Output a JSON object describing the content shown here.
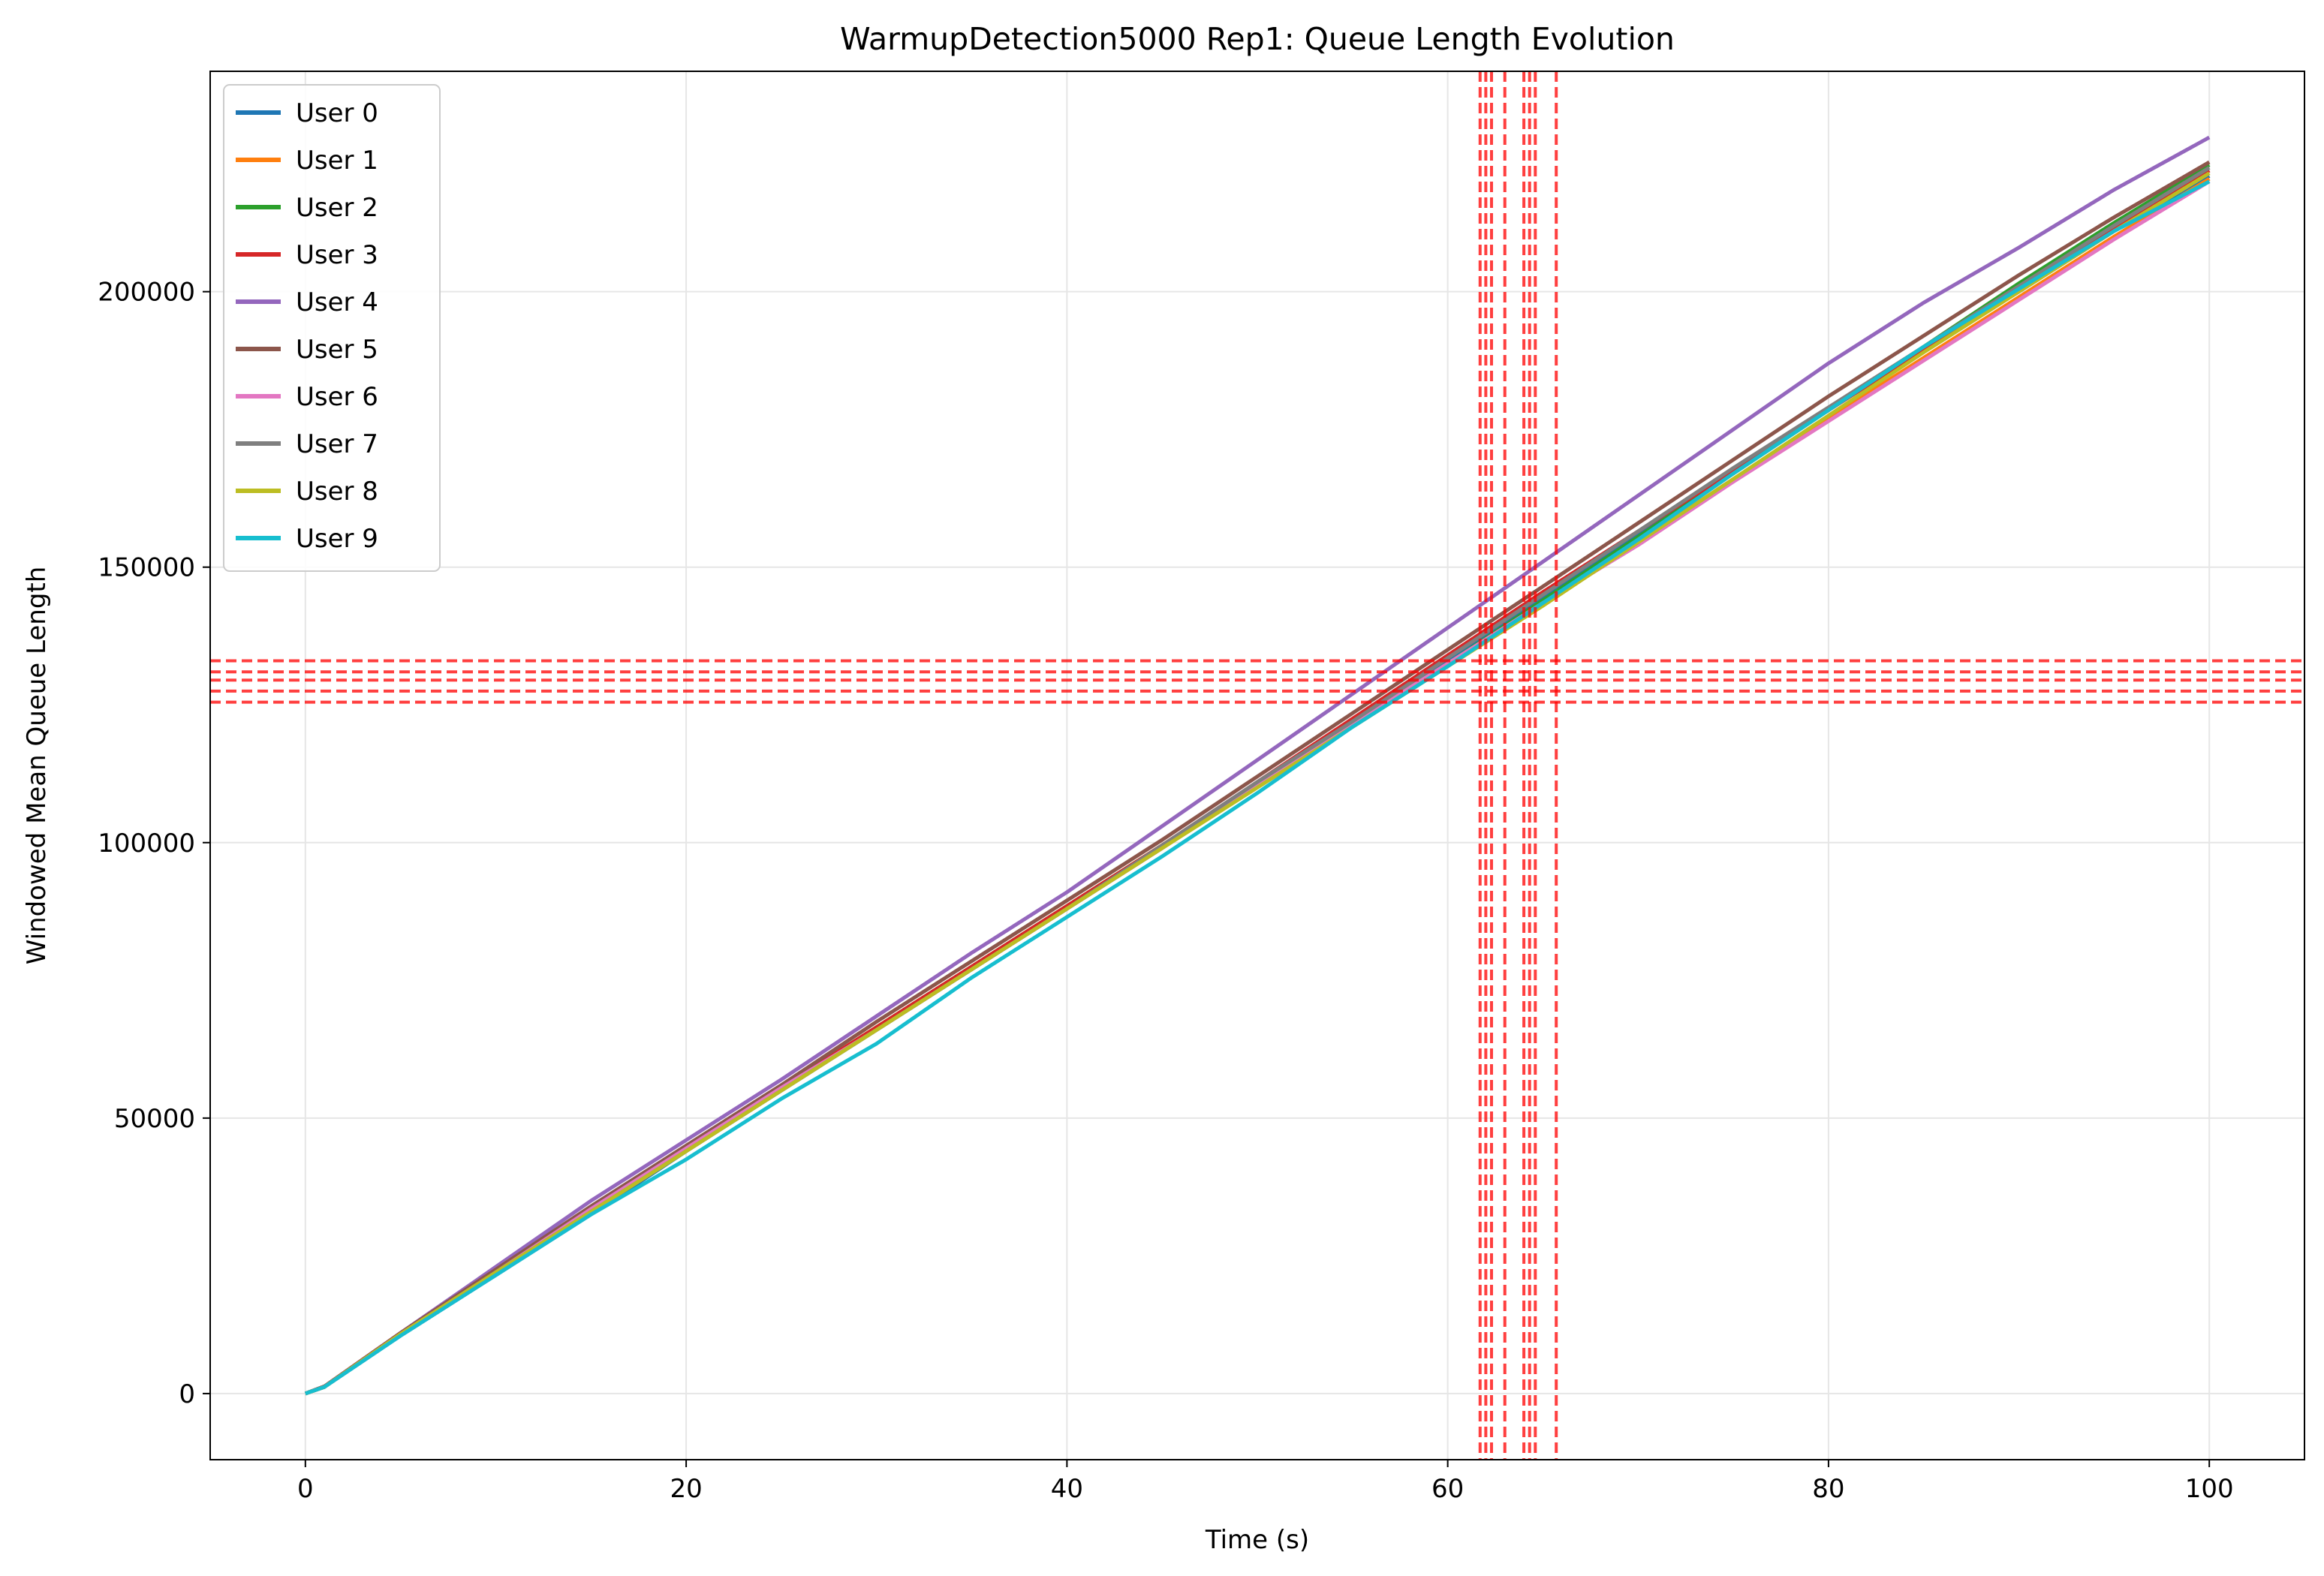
{
  "chart_data": {
    "type": "line",
    "title": "WarmupDetection5000 Rep1: Queue Length Evolution",
    "xlabel": "Time (s)",
    "ylabel": "Windowed Mean Queue Length",
    "xlim": [
      -5,
      105
    ],
    "ylim": [
      -12000,
      240000
    ],
    "xticks": [
      0,
      20,
      40,
      60,
      80,
      100
    ],
    "yticks": [
      0,
      50000,
      100000,
      150000,
      200000
    ],
    "xtick_labels": [
      "0",
      "20",
      "40",
      "60",
      "80",
      "100"
    ],
    "ytick_labels": [
      "0",
      "50000",
      "100000",
      "150000",
      "200000"
    ],
    "grid": true,
    "legend_position": "upper-left",
    "x": [
      0,
      1,
      5,
      10,
      15,
      20,
      25,
      30,
      35,
      40,
      45,
      50,
      55,
      60,
      65,
      70,
      75,
      80,
      85,
      90,
      95,
      100
    ],
    "series": [
      {
        "name": "User 0",
        "color": "#1f77b4",
        "values": [
          0,
          1200,
          10500,
          21500,
          32500,
          44000,
          55000,
          66000,
          77000,
          88000,
          99000,
          110500,
          121500,
          133000,
          144500,
          156000,
          167500,
          178500,
          189500,
          200000,
          211000,
          221000
        ]
      },
      {
        "name": "User 1",
        "color": "#ff7f0e",
        "values": [
          0,
          1200,
          10800,
          22000,
          33000,
          44500,
          55500,
          66500,
          77500,
          88500,
          99500,
          110500,
          121500,
          132500,
          143500,
          154500,
          166000,
          177000,
          188000,
          199000,
          210000,
          220500
        ]
      },
      {
        "name": "User 2",
        "color": "#2ca02c",
        "values": [
          0,
          1300,
          10800,
          22000,
          33000,
          44000,
          55500,
          66500,
          77500,
          88500,
          99500,
          110500,
          121500,
          132500,
          144000,
          155500,
          167000,
          178500,
          190000,
          201500,
          212500,
          223000
        ]
      },
      {
        "name": "User 3",
        "color": "#d62728",
        "values": [
          0,
          1300,
          11000,
          22500,
          33500,
          44500,
          55500,
          66500,
          77500,
          88500,
          99500,
          111000,
          122500,
          134000,
          145500,
          156500,
          167500,
          178500,
          189500,
          200500,
          211500,
          222000
        ]
      },
      {
        "name": "User 4",
        "color": "#9467bd",
        "values": [
          0,
          1300,
          11000,
          23000,
          35000,
          46000,
          57000,
          68500,
          80000,
          91000,
          103000,
          115000,
          127000,
          139000,
          151000,
          163000,
          175000,
          187000,
          198000,
          208000,
          218500,
          228000
        ]
      },
      {
        "name": "User 5",
        "color": "#8c564b",
        "values": [
          0,
          1300,
          11000,
          22500,
          34000,
          45000,
          56000,
          67500,
          78500,
          89500,
          100500,
          112000,
          123500,
          135000,
          146500,
          158000,
          169500,
          181000,
          192000,
          203000,
          213500,
          223500
        ]
      },
      {
        "name": "User 6",
        "color": "#e377c2",
        "values": [
          0,
          1200,
          10800,
          22000,
          33500,
          44500,
          55500,
          66000,
          77000,
          88000,
          99000,
          110500,
          121500,
          132500,
          143500,
          154000,
          165500,
          176500,
          187500,
          198500,
          209500,
          220000
        ]
      },
      {
        "name": "User 7",
        "color": "#7f7f7f",
        "values": [
          0,
          1200,
          10800,
          22000,
          33000,
          44000,
          55000,
          66000,
          77000,
          88000,
          99500,
          111000,
          122000,
          133500,
          145000,
          156500,
          168000,
          179000,
          190000,
          201000,
          212000,
          222500
        ]
      },
      {
        "name": "User 8",
        "color": "#bcbd22",
        "values": [
          0,
          1200,
          10800,
          22000,
          33000,
          44000,
          55000,
          66000,
          77000,
          88000,
          99000,
          110000,
          121000,
          132000,
          143000,
          154500,
          166000,
          177500,
          189000,
          200000,
          211000,
          221500
        ]
      },
      {
        "name": "User 9",
        "color": "#17becf",
        "values": [
          0,
          1200,
          10500,
          21500,
          32500,
          42500,
          53500,
          63500,
          75500,
          86500,
          97500,
          109000,
          121000,
          132000,
          143500,
          155000,
          167000,
          178500,
          190000,
          200500,
          211000,
          220000
        ]
      }
    ],
    "reference_lines": {
      "color": "#ff0000",
      "style": "dashed",
      "vertical_x": [
        61.7,
        62.0,
        62.3,
        63.0,
        64.0,
        64.3,
        64.6,
        65.7
      ],
      "horizontal_y": [
        125500,
        127500,
        129500,
        131000,
        133000
      ]
    }
  }
}
